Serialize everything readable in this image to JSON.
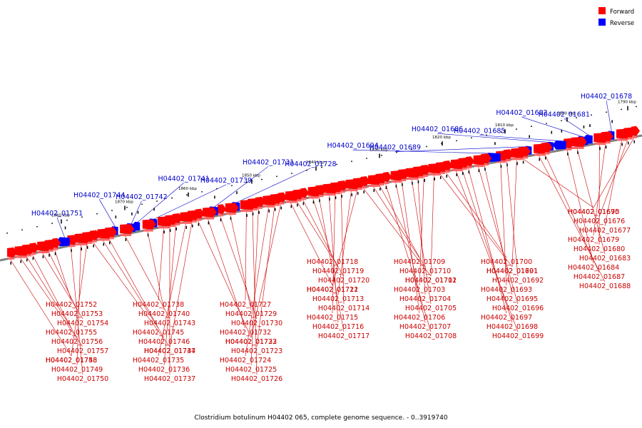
{
  "caption": "Clostridium botulinum H04402 065, complete genome sequence. - 0..3919740",
  "legend": [
    {
      "label": "Forward",
      "color": "#ff0000"
    },
    {
      "label": "Reverse",
      "color": "#0000ff"
    }
  ],
  "colors": {
    "forward": "#ff0000",
    "reverse": "#0000ff",
    "backbone": "#808080",
    "label_forward": "#cc0000",
    "label_reverse": "#0000cc"
  },
  "ticks": [
    "1790 kbp",
    "1800 kbp",
    "1810 kbp",
    "1820 kbp",
    "1830 kbp",
    "1840 kbp",
    "1850 kbp",
    "1860 kbp",
    "1870 kbp",
    "1880 kbp"
  ],
  "genes": [
    {
      "id": "H04402_01675",
      "strand": "forward"
    },
    {
      "id": "H04402_01676",
      "strand": "forward"
    },
    {
      "id": "H04402_01677",
      "strand": "forward"
    },
    {
      "id": "H04402_01678",
      "strand": "reverse"
    },
    {
      "id": "H04402_01679",
      "strand": "forward"
    },
    {
      "id": "H04402_01680",
      "strand": "forward"
    },
    {
      "id": "H04402_01681",
      "strand": "reverse"
    },
    {
      "id": "H04402_01682",
      "strand": "reverse"
    },
    {
      "id": "H04402_01683",
      "strand": "forward"
    },
    {
      "id": "H04402_01684",
      "strand": "forward"
    },
    {
      "id": "H04402_01685",
      "strand": "reverse"
    },
    {
      "id": "H04402_01686",
      "strand": "reverse"
    },
    {
      "id": "H04402_01687",
      "strand": "forward"
    },
    {
      "id": "H04402_01688",
      "strand": "forward"
    },
    {
      "id": "H04402_01689",
      "strand": "reverse"
    },
    {
      "id": "H04402_01690",
      "strand": "forward"
    },
    {
      "id": "H04402_01691",
      "strand": "forward"
    },
    {
      "id": "H04402_01692",
      "strand": "forward"
    },
    {
      "id": "H04402_01693",
      "strand": "forward"
    },
    {
      "id": "H04402_01694",
      "strand": "reverse"
    },
    {
      "id": "H04402_01695",
      "strand": "forward"
    },
    {
      "id": "H04402_01696",
      "strand": "forward"
    },
    {
      "id": "H04402_01697",
      "strand": "forward"
    },
    {
      "id": "H04402_01698",
      "strand": "forward"
    },
    {
      "id": "H04402_01699",
      "strand": "forward"
    },
    {
      "id": "H04402_01700",
      "strand": "forward"
    },
    {
      "id": "H04402_01701",
      "strand": "forward"
    },
    {
      "id": "H04402_01702",
      "strand": "forward"
    },
    {
      "id": "H04402_01703",
      "strand": "forward"
    },
    {
      "id": "H04402_01704",
      "strand": "forward"
    },
    {
      "id": "H04402_01705",
      "strand": "forward"
    },
    {
      "id": "H04402_01706",
      "strand": "forward"
    },
    {
      "id": "H04402_01707",
      "strand": "forward"
    },
    {
      "id": "H04402_01708",
      "strand": "forward"
    },
    {
      "id": "H04402_01709",
      "strand": "forward"
    },
    {
      "id": "H04402_01710",
      "strand": "forward"
    },
    {
      "id": "H04402_01711",
      "strand": "forward"
    },
    {
      "id": "H04402_01712",
      "strand": "forward"
    },
    {
      "id": "H04402_01713",
      "strand": "forward"
    },
    {
      "id": "H04402_01714",
      "strand": "forward"
    },
    {
      "id": "H04402_01715",
      "strand": "forward"
    },
    {
      "id": "H04402_01716",
      "strand": "forward"
    },
    {
      "id": "H04402_01717",
      "strand": "forward"
    },
    {
      "id": "H04402_01718",
      "strand": "forward"
    },
    {
      "id": "H04402_01719",
      "strand": "forward"
    },
    {
      "id": "H04402_01720",
      "strand": "forward"
    },
    {
      "id": "H04402_01721",
      "strand": "forward"
    },
    {
      "id": "H04402_01722",
      "strand": "forward"
    },
    {
      "id": "H04402_01723",
      "strand": "forward"
    },
    {
      "id": "H04402_01724",
      "strand": "forward"
    },
    {
      "id": "H04402_01725",
      "strand": "forward"
    },
    {
      "id": "H04402_01726",
      "strand": "forward"
    },
    {
      "id": "H04402_01727",
      "strand": "forward"
    },
    {
      "id": "H04402_01728",
      "strand": "reverse"
    },
    {
      "id": "H04402_01729",
      "strand": "forward"
    },
    {
      "id": "H04402_01730",
      "strand": "forward"
    },
    {
      "id": "H04402_01731",
      "strand": "reverse"
    },
    {
      "id": "H04402_01732",
      "strand": "forward"
    },
    {
      "id": "H04402_01733",
      "strand": "forward"
    },
    {
      "id": "H04402_01734",
      "strand": "forward"
    },
    {
      "id": "H04402_01735",
      "strand": "forward"
    },
    {
      "id": "H04402_01736",
      "strand": "forward"
    },
    {
      "id": "H04402_01737",
      "strand": "forward"
    },
    {
      "id": "H04402_01738",
      "strand": "forward"
    },
    {
      "id": "H04402_01739",
      "strand": "reverse"
    },
    {
      "id": "H04402_01740",
      "strand": "forward"
    },
    {
      "id": "H04402_01741",
      "strand": "reverse"
    },
    {
      "id": "H04402_01742",
      "strand": "reverse"
    },
    {
      "id": "H04402_01743",
      "strand": "forward"
    },
    {
      "id": "H04402_01744",
      "strand": "reverse"
    },
    {
      "id": "H04402_01745",
      "strand": "forward"
    },
    {
      "id": "H04402_01746",
      "strand": "forward"
    },
    {
      "id": "H04402_01747",
      "strand": "forward"
    },
    {
      "id": "H04402_01748",
      "strand": "forward"
    },
    {
      "id": "H04402_01749",
      "strand": "forward"
    },
    {
      "id": "H04402_01750",
      "strand": "forward"
    },
    {
      "id": "H04402_01751",
      "strand": "reverse"
    },
    {
      "id": "H04402_01752",
      "strand": "forward"
    },
    {
      "id": "H04402_01753",
      "strand": "forward"
    },
    {
      "id": "H04402_01754",
      "strand": "forward"
    },
    {
      "id": "H04402_01755",
      "strand": "forward"
    },
    {
      "id": "H04402_01756",
      "strand": "forward"
    },
    {
      "id": "H04402_01757",
      "strand": "forward"
    },
    {
      "id": "H04402_01758",
      "strand": "forward"
    }
  ]
}
